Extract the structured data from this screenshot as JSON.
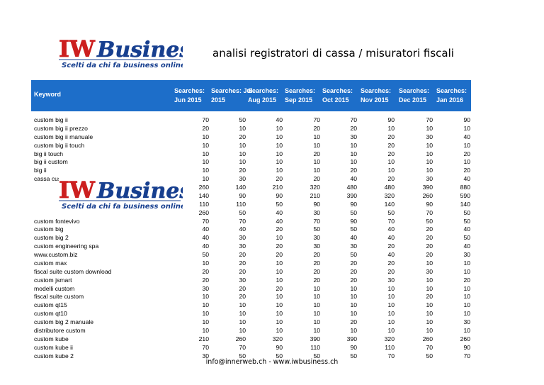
{
  "logo": {
    "brand": "IW Business",
    "tagline": "Scelti da chi fa business online"
  },
  "title": "analisi registratori di cassa / misuratori fiscali",
  "table": {
    "keyword_header": "Keyword",
    "columns": [
      {
        "line1": "Searches:",
        "line2": "Jun 2015"
      },
      {
        "line1": "Searches: Jul",
        "line2": "2015"
      },
      {
        "line1": "Searches:",
        "line2": "Aug 2015"
      },
      {
        "line1": "Searches:",
        "line2": "Sep 2015"
      },
      {
        "line1": "Searches:",
        "line2": "Oct 2015"
      },
      {
        "line1": "Searches:",
        "line2": "Nov 2015"
      },
      {
        "line1": "Searches:",
        "line2": "Dec 2015"
      },
      {
        "line1": "Searches:",
        "line2": "Jan 2016"
      }
    ],
    "rows": [
      {
        "keyword": "custom big ii",
        "values": [
          "70",
          "50",
          "40",
          "70",
          "70",
          "90",
          "70",
          "90"
        ]
      },
      {
        "keyword": "custom big ii prezzo",
        "values": [
          "20",
          "10",
          "10",
          "20",
          "20",
          "10",
          "10",
          "10"
        ]
      },
      {
        "keyword": "custom big ii manuale",
        "values": [
          "10",
          "20",
          "10",
          "10",
          "30",
          "20",
          "30",
          "40"
        ]
      },
      {
        "keyword": "custom big ii touch",
        "values": [
          "10",
          "10",
          "10",
          "10",
          "10",
          "20",
          "10",
          "10"
        ]
      },
      {
        "keyword": "big ii touch",
        "values": [
          "10",
          "10",
          "10",
          "20",
          "10",
          "20",
          "10",
          "20"
        ]
      },
      {
        "keyword": "big ii custom",
        "values": [
          "10",
          "10",
          "10",
          "10",
          "10",
          "10",
          "10",
          "10"
        ]
      },
      {
        "keyword": "big ii",
        "values": [
          "10",
          "20",
          "10",
          "10",
          "20",
          "10",
          "10",
          "20"
        ]
      },
      {
        "keyword": "cassa custom",
        "values": [
          "10",
          "30",
          "20",
          "20",
          "40",
          "20",
          "30",
          "40"
        ]
      },
      {
        "keyword": "",
        "values": [
          "260",
          "140",
          "210",
          "320",
          "480",
          "480",
          "390",
          "880"
        ]
      },
      {
        "keyword": "",
        "values": [
          "140",
          "90",
          "90",
          "210",
          "390",
          "320",
          "260",
          "590"
        ]
      },
      {
        "keyword": "",
        "values": [
          "110",
          "110",
          "50",
          "90",
          "90",
          "140",
          "90",
          "140"
        ]
      },
      {
        "keyword": "",
        "values": [
          "260",
          "50",
          "40",
          "30",
          "50",
          "50",
          "70",
          "50"
        ]
      },
      {
        "keyword": "custom fontevivo",
        "values": [
          "70",
          "70",
          "40",
          "70",
          "90",
          "70",
          "50",
          "50"
        ]
      },
      {
        "keyword": "custom big",
        "values": [
          "40",
          "40",
          "20",
          "50",
          "50",
          "40",
          "20",
          "40"
        ]
      },
      {
        "keyword": "custom big 2",
        "values": [
          "40",
          "30",
          "10",
          "30",
          "40",
          "40",
          "20",
          "50"
        ]
      },
      {
        "keyword": "custom engineering spa",
        "values": [
          "40",
          "30",
          "20",
          "30",
          "30",
          "20",
          "20",
          "40"
        ]
      },
      {
        "keyword": "www.custom.biz",
        "values": [
          "50",
          "20",
          "20",
          "20",
          "50",
          "40",
          "20",
          "30"
        ]
      },
      {
        "keyword": "custom max",
        "values": [
          "10",
          "20",
          "10",
          "20",
          "20",
          "20",
          "10",
          "10"
        ]
      },
      {
        "keyword": "fiscal suite custom download",
        "values": [
          "20",
          "20",
          "10",
          "20",
          "20",
          "20",
          "30",
          "10"
        ]
      },
      {
        "keyword": "custom jsmart",
        "values": [
          "20",
          "30",
          "10",
          "20",
          "20",
          "30",
          "10",
          "20"
        ]
      },
      {
        "keyword": "modelli custom",
        "values": [
          "30",
          "20",
          "20",
          "10",
          "10",
          "10",
          "10",
          "10"
        ]
      },
      {
        "keyword": "fiscal suite custom",
        "values": [
          "10",
          "20",
          "10",
          "10",
          "10",
          "10",
          "20",
          "10"
        ]
      },
      {
        "keyword": "custom qt15",
        "values": [
          "10",
          "10",
          "10",
          "10",
          "10",
          "10",
          "10",
          "10"
        ]
      },
      {
        "keyword": "custom qt10",
        "values": [
          "10",
          "10",
          "10",
          "10",
          "10",
          "10",
          "10",
          "10"
        ]
      },
      {
        "keyword": "custom big 2 manuale",
        "values": [
          "10",
          "10",
          "10",
          "10",
          "20",
          "10",
          "10",
          "30"
        ]
      },
      {
        "keyword": "distributore custom",
        "values": [
          "10",
          "10",
          "10",
          "10",
          "10",
          "10",
          "10",
          "10"
        ]
      },
      {
        "keyword": "custom kube",
        "values": [
          "210",
          "260",
          "320",
          "390",
          "390",
          "320",
          "260",
          "260"
        ]
      },
      {
        "keyword": "custom kube ii",
        "values": [
          "70",
          "70",
          "90",
          "110",
          "90",
          "110",
          "70",
          "90"
        ]
      },
      {
        "keyword": "custom kube 2",
        "values": [
          "30",
          "50",
          "50",
          "50",
          "50",
          "70",
          "50",
          "70"
        ]
      }
    ]
  },
  "footer": "info@innerweb.ch  -  www.iwbusiness.ch"
}
